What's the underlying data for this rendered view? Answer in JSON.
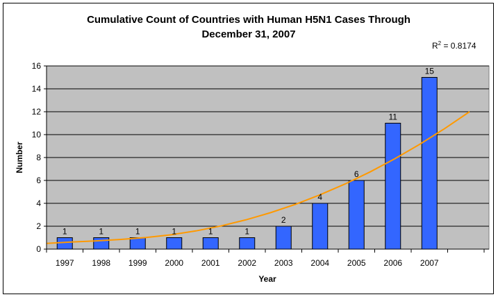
{
  "chart_data": {
    "type": "bar",
    "title_line1": "Cumulative Count of Countries with Human H5N1 Cases Through",
    "title_line2": "December 31, 2007",
    "xlabel": "Year",
    "ylabel": "Number",
    "categories": [
      "1997",
      "1998",
      "1999",
      "2000",
      "2001",
      "2002",
      "2003",
      "2004",
      "2005",
      "2006",
      "2007"
    ],
    "values": [
      1,
      1,
      1,
      1,
      1,
      1,
      2,
      4,
      6,
      11,
      15
    ],
    "data_labels": [
      "1",
      "1",
      "1",
      "1",
      "1",
      "1",
      "2",
      "4",
      "6",
      "11",
      "15"
    ],
    "ylim": [
      0,
      16
    ],
    "yticks": [
      "0",
      "2",
      "4",
      "6",
      "8",
      "10",
      "12",
      "14",
      "16"
    ],
    "grid": true,
    "trendline": {
      "type": "polynomial",
      "r_squared_label": "R",
      "r_squared_sup": "2",
      "r_squared_value": " = 0.8174",
      "values": [
        0.5,
        0.62,
        0.72,
        0.85,
        1.01,
        1.25,
        1.59,
        2.02,
        2.55,
        3.18,
        3.91,
        4.75,
        5.69,
        6.74,
        7.9,
        9.16,
        10.53,
        12.0
      ]
    },
    "colors": {
      "plot_bg": "#c0c0c0",
      "bar_fill": "#3366ff",
      "bar_stroke": "#000000",
      "trend": "#ff9900",
      "grid": "#000000"
    }
  }
}
